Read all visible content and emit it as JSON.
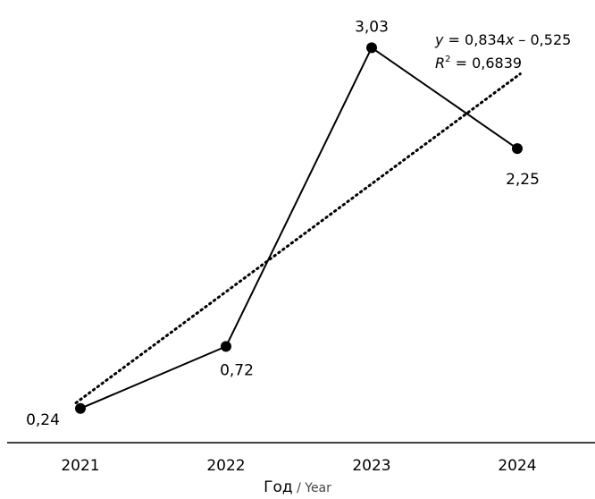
{
  "chart_data": {
    "type": "line",
    "x": [
      "2021",
      "2022",
      "2023",
      "2024"
    ],
    "series": [
      {
        "values": [
          0.24,
          0.72,
          3.03,
          2.25
        ],
        "labels": [
          "0,24",
          "0,72",
          "3,03",
          "2,25"
        ]
      }
    ],
    "xlabel": "Год / Year",
    "xlabel_ru": "Год",
    "xlabel_sep": " / ",
    "xlabel_en": "Year",
    "ylabel": "",
    "ylim": [
      0,
      3.3
    ],
    "grid": false,
    "trendline": {
      "type": "linear",
      "slope": 0.834,
      "intercept": -0.525,
      "style": "dotted",
      "equation_y": "y",
      "equation_rest": " = 0,834",
      "equation_x": "x",
      "equation_tail": " – 0,525",
      "r2_r": "R",
      "r2_sup": "2",
      "r2_value": " = 0,6839"
    },
    "colors": {
      "line": "#000000",
      "marker": "#000000",
      "trend": "#000000"
    }
  }
}
